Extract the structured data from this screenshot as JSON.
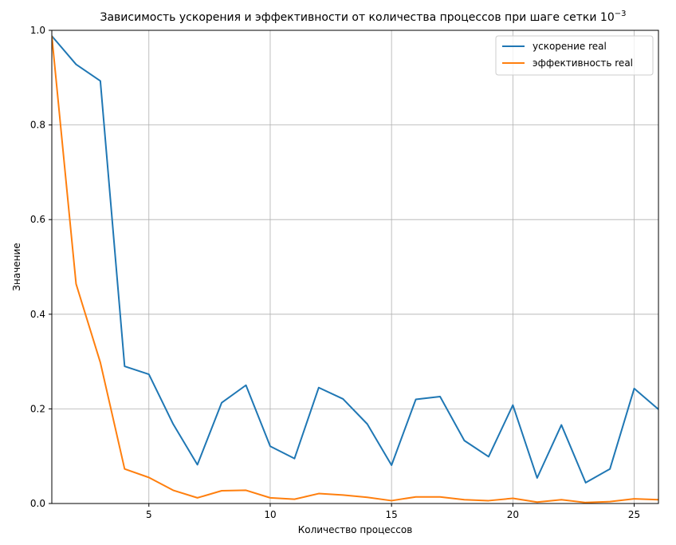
{
  "chart_data": {
    "type": "line",
    "title": "Зависимость ускорения и эффективности от количества процессов при шаге сетки 10",
    "title_sup": "−3",
    "xlabel": "Количество процессов",
    "ylabel": "Значение",
    "xlim": [
      1,
      26
    ],
    "ylim": [
      0,
      1.0
    ],
    "xticks": [
      5,
      10,
      15,
      20,
      25
    ],
    "yticks": [
      0.0,
      0.2,
      0.4,
      0.6,
      0.8,
      1.0
    ],
    "xtick_labels": [
      "5",
      "10",
      "15",
      "20",
      "25"
    ],
    "ytick_labels": [
      "0.0",
      "0.2",
      "0.4",
      "0.6",
      "0.8",
      "1.0"
    ],
    "grid": true,
    "legend_position": "top-right",
    "x": [
      1,
      2,
      3,
      4,
      5,
      6,
      7,
      8,
      9,
      10,
      11,
      12,
      13,
      14,
      15,
      16,
      17,
      18,
      19,
      20,
      21,
      22,
      23,
      24,
      25,
      26
    ],
    "series": [
      {
        "name": "ускорение real",
        "color": "#1f77b4",
        "values": [
          0.988,
          0.928,
          0.893,
          0.29,
          0.273,
          0.168,
          0.082,
          0.213,
          0.25,
          0.121,
          0.095,
          0.245,
          0.221,
          0.168,
          0.081,
          0.22,
          0.226,
          0.133,
          0.099,
          0.208,
          0.054,
          0.166,
          0.044,
          0.073,
          0.243,
          0.199
        ]
      },
      {
        "name": "эффективность real",
        "color": "#ff7f0e",
        "values": [
          0.988,
          0.464,
          0.298,
          0.073,
          0.055,
          0.028,
          0.012,
          0.027,
          0.028,
          0.012,
          0.009,
          0.021,
          0.018,
          0.013,
          0.006,
          0.014,
          0.014,
          0.008,
          0.006,
          0.011,
          0.003,
          0.008,
          0.002,
          0.004,
          0.01,
          0.008
        ]
      }
    ]
  }
}
